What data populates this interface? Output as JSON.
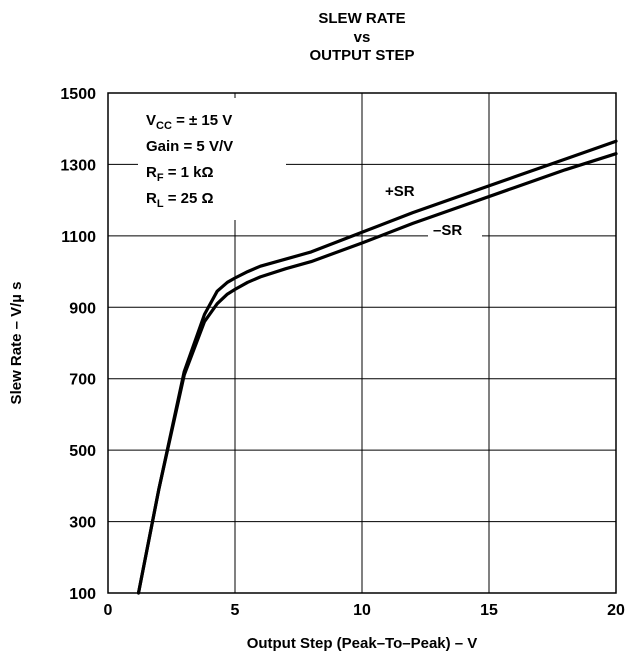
{
  "chart_data": {
    "type": "line",
    "title_lines": [
      "SLEW RATE",
      "vs",
      "OUTPUT STEP"
    ],
    "xlabel": "Output Step (Peak–To–Peak) – V",
    "ylabel": "Slew Rate – V/µ s",
    "xlim": [
      0,
      20
    ],
    "ylim": [
      100,
      1500
    ],
    "xticks": [
      0,
      5,
      10,
      15,
      20
    ],
    "yticks": [
      100,
      300,
      500,
      700,
      900,
      1100,
      1300,
      1500
    ],
    "grid": true,
    "conditions": {
      "vcc": {
        "main": "V",
        "sub": "CC",
        "rest": " = ± 15 V"
      },
      "gain": {
        "main": "Gain = 5 V/V"
      },
      "rf": {
        "main": "R",
        "sub": "F",
        "rest": " = 1 kΩ"
      },
      "rl": {
        "main": "R",
        "sub": "L",
        "rest": " = 25 Ω"
      }
    },
    "series": [
      {
        "name": "+SR",
        "x": [
          1.2,
          2,
          3,
          3.8,
          4.3,
          4.7,
          5,
          5.5,
          6,
          7,
          8,
          10,
          12,
          14,
          16,
          18,
          20
        ],
        "y": [
          100,
          390,
          720,
          880,
          945,
          970,
          982,
          1000,
          1015,
          1035,
          1055,
          1110,
          1165,
          1215,
          1265,
          1315,
          1365
        ]
      },
      {
        "name": "–SR",
        "x": [
          1.2,
          2,
          3,
          3.8,
          4.3,
          4.7,
          5,
          5.5,
          6,
          7,
          8,
          10,
          12,
          14,
          16,
          18,
          20
        ],
        "y": [
          100,
          390,
          710,
          860,
          910,
          937,
          950,
          970,
          985,
          1008,
          1028,
          1080,
          1135,
          1185,
          1235,
          1285,
          1330
        ]
      }
    ]
  }
}
